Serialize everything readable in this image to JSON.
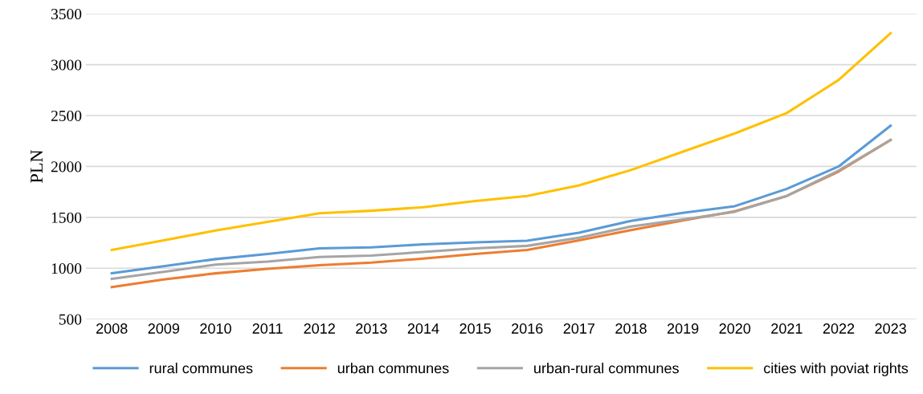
{
  "chart_data": {
    "type": "line",
    "ylabel": "PLN",
    "categories": [
      "2008",
      "2009",
      "2010",
      "2011",
      "2012",
      "2013",
      "2014",
      "2015",
      "2016",
      "2017",
      "2018",
      "2019",
      "2020",
      "2021",
      "2022",
      "2023"
    ],
    "series": [
      {
        "name": "rural communes",
        "color": "#5b9bd5",
        "values": [
          950,
          1020,
          1090,
          1140,
          1195,
          1205,
          1235,
          1255,
          1270,
          1350,
          1465,
          1545,
          1610,
          1780,
          2000,
          2400
        ]
      },
      {
        "name": "urban communes",
        "color": "#ed7d31",
        "values": [
          815,
          890,
          950,
          995,
          1030,
          1055,
          1095,
          1140,
          1180,
          1275,
          1375,
          1470,
          1560,
          1710,
          1950,
          2260
        ]
      },
      {
        "name": "urban-rural communes",
        "color": "#a5a5a5",
        "values": [
          895,
          965,
          1035,
          1065,
          1110,
          1125,
          1160,
          1195,
          1220,
          1300,
          1410,
          1480,
          1555,
          1710,
          1960,
          2260
        ]
      },
      {
        "name": "cities with poviat rights",
        "color": "#ffc000",
        "values": [
          1180,
          1275,
          1370,
          1455,
          1540,
          1565,
          1600,
          1660,
          1710,
          1815,
          1965,
          2145,
          2325,
          2525,
          2850,
          3310
        ]
      }
    ],
    "ylim": [
      500,
      3500
    ],
    "yticks": [
      500,
      1000,
      1500,
      2000,
      2500,
      3000,
      3500
    ],
    "grid": "y",
    "legend": "bottom",
    "marker": "none",
    "line_style": "solid"
  }
}
